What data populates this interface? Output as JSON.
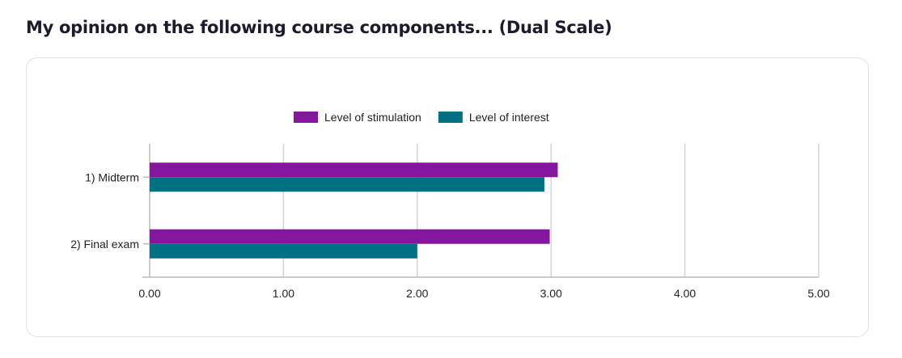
{
  "title": "My opinion on the following course components... (Dual Scale)",
  "chart_data": {
    "type": "bar",
    "orientation": "horizontal",
    "categories": [
      "1) Midterm",
      "2) Final exam"
    ],
    "series": [
      {
        "name": "Level of stimulation",
        "color": "#84179e",
        "values": [
          3.05,
          2.99
        ]
      },
      {
        "name": "Level of interest",
        "color": "#007083",
        "values": [
          2.95,
          2.0
        ]
      }
    ],
    "xlim": [
      0,
      5
    ],
    "xticks": [
      "0.00",
      "1.00",
      "2.00",
      "3.00",
      "4.00",
      "5.00"
    ],
    "grid": true,
    "legend": "top-center"
  }
}
